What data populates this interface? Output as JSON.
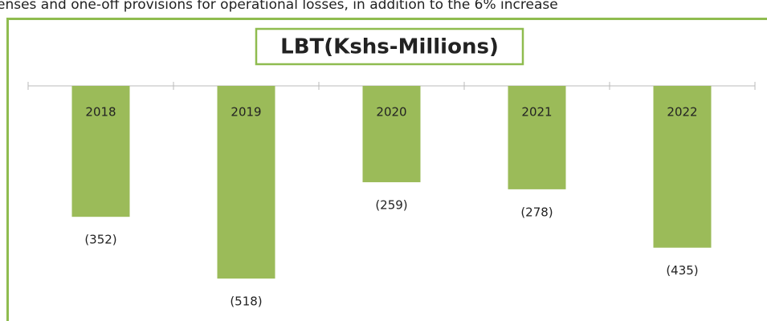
{
  "text_above": "enses and one-off provisions for operational losses, in addition to the 6% increase",
  "chart_data": {
    "type": "bar",
    "title": "LBT(Kshs-Millions)",
    "categories": [
      "2018",
      "2019",
      "2020",
      "2021",
      "2022"
    ],
    "values": [
      -352,
      -518,
      -259,
      -278,
      -435
    ],
    "value_labels": [
      "(352)",
      "(518)",
      "(259)",
      "(278)",
      "(435)"
    ],
    "color": "#9bbb59",
    "ylim": [
      -632,
      0
    ]
  }
}
